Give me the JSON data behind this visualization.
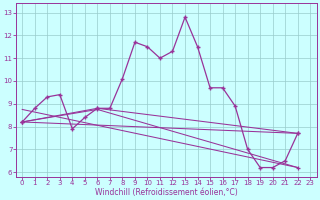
{
  "x_values": [
    0,
    1,
    2,
    3,
    4,
    5,
    6,
    7,
    8,
    9,
    10,
    11,
    12,
    13,
    14,
    15,
    16,
    17,
    18,
    19,
    20,
    21,
    22,
    23
  ],
  "main_curve": [
    8.2,
    8.8,
    9.3,
    9.4,
    7.9,
    8.4,
    8.8,
    8.8,
    10.1,
    11.7,
    11.5,
    11.0,
    11.3,
    12.8,
    11.5,
    9.7,
    9.7,
    8.9,
    7.0,
    6.2,
    6.2,
    6.5,
    7.7,
    null
  ],
  "trend1_x": [
    0,
    6,
    22
  ],
  "trend1_y": [
    8.2,
    8.8,
    7.7
  ],
  "trend2_x": [
    0,
    6,
    22
  ],
  "trend2_y": [
    8.2,
    8.75,
    6.2
  ],
  "trend3_x": [
    0,
    22
  ],
  "trend3_y": [
    8.2,
    7.7
  ],
  "trend4_x": [
    0,
    22
  ],
  "trend4_y": [
    8.75,
    6.2
  ],
  "ylim": [
    5.8,
    13.4
  ],
  "xlim": [
    -0.5,
    23.5
  ],
  "yticks": [
    6,
    7,
    8,
    9,
    10,
    11,
    12,
    13
  ],
  "xticks": [
    0,
    1,
    2,
    3,
    4,
    5,
    6,
    7,
    8,
    9,
    10,
    11,
    12,
    13,
    14,
    15,
    16,
    17,
    18,
    19,
    20,
    21,
    22,
    23
  ],
  "xlabel": "Windchill (Refroidissement éolien,°C)",
  "color": "#993399",
  "bg_color": "#ccffff",
  "grid_color": "#99cccc",
  "axis_color": "#993399",
  "tick_color": "#993399",
  "label_color": "#993399",
  "tick_fontsize": 5.0,
  "label_fontsize": 5.5
}
